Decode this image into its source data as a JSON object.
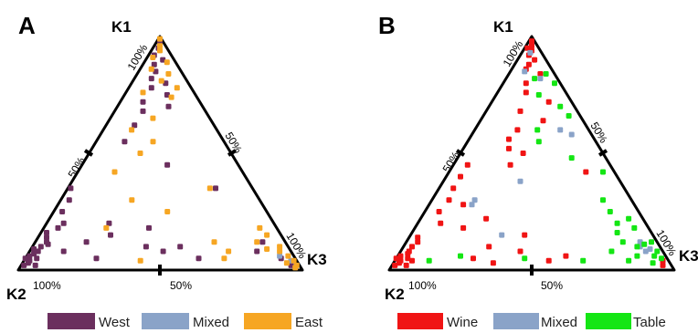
{
  "chart_data": [
    {
      "type": "scatter",
      "panel": "A",
      "vertices": {
        "top": "K1",
        "left": "K2",
        "right": "K3"
      },
      "edge_labels": {
        "k1_100": "100%",
        "k1_50": "50%",
        "k2_100": "100%",
        "bottom_50": "50%",
        "k3_50": "50%",
        "k3_100": "100%"
      },
      "legend": [
        {
          "name": "West",
          "color": "#6b2f5e"
        },
        {
          "name": "Mixed",
          "color": "#8aa3c8"
        },
        {
          "name": "East",
          "color": "#f6a623"
        }
      ],
      "series": [
        {
          "name": "West",
          "color": "#6b2f5e",
          "points": [
            [
              0.02,
              0.97,
              0.01
            ],
            [
              0.03,
              0.95,
              0.02
            ],
            [
              0.04,
              0.94,
              0.02
            ],
            [
              0.02,
              0.93,
              0.05
            ],
            [
              0.05,
              0.91,
              0.04
            ],
            [
              0.06,
              0.93,
              0.01
            ],
            [
              0.08,
              0.89,
              0.03
            ],
            [
              0.1,
              0.87,
              0.03
            ],
            [
              0.11,
              0.84,
              0.05
            ],
            [
              0.14,
              0.83,
              0.03
            ],
            [
              0.16,
              0.82,
              0.02
            ],
            [
              0.09,
              0.9,
              0.01
            ],
            [
              0.07,
              0.91,
              0.02
            ],
            [
              0.05,
              0.96,
              0.0
            ],
            [
              0.35,
              0.64,
              0.01
            ],
            [
              0.3,
              0.67,
              0.03
            ],
            [
              0.25,
              0.72,
              0.03
            ],
            [
              0.2,
              0.74,
              0.06
            ],
            [
              0.18,
              0.77,
              0.05
            ],
            [
              0.12,
              0.84,
              0.04
            ],
            [
              0.2,
              0.58,
              0.22
            ],
            [
              0.12,
              0.7,
              0.18
            ],
            [
              0.08,
              0.8,
              0.12
            ],
            [
              0.15,
              0.6,
              0.25
            ],
            [
              0.05,
              0.7,
              0.25
            ],
            [
              0.1,
              0.5,
              0.4
            ],
            [
              0.18,
              0.45,
              0.37
            ],
            [
              0.08,
              0.45,
              0.47
            ],
            [
              0.1,
              0.38,
              0.52
            ],
            [
              0.05,
              0.34,
              0.61
            ],
            [
              0.98,
              0.01,
              0.01
            ],
            [
              0.95,
              0.03,
              0.02
            ],
            [
              0.92,
              0.06,
              0.02
            ],
            [
              0.9,
              0.04,
              0.06
            ],
            [
              0.88,
              0.08,
              0.04
            ],
            [
              0.85,
              0.09,
              0.06
            ],
            [
              0.82,
              0.12,
              0.06
            ],
            [
              0.8,
              0.08,
              0.12
            ],
            [
              0.78,
              0.14,
              0.08
            ],
            [
              0.75,
              0.1,
              0.15
            ],
            [
              0.72,
              0.2,
              0.08
            ],
            [
              0.68,
              0.22,
              0.1
            ],
            [
              0.7,
              0.12,
              0.18
            ],
            [
              0.62,
              0.28,
              0.1
            ],
            [
              0.55,
              0.35,
              0.1
            ],
            [
              0.45,
              0.25,
              0.3
            ],
            [
              0.35,
              0.13,
              0.52
            ],
            [
              0.12,
              0.08,
              0.8
            ],
            [
              0.08,
              0.12,
              0.8
            ],
            [
              0.05,
              0.05,
              0.9
            ],
            [
              0.02,
              0.03,
              0.95
            ]
          ]
        },
        {
          "name": "Mixed",
          "color": "#8aa3c8",
          "points": [
            [
              0.06,
              0.05,
              0.89
            ],
            [
              0.04,
              0.02,
              0.94
            ]
          ]
        },
        {
          "name": "East",
          "color": "#f6a623",
          "points": [
            [
              0.99,
              0.005,
              0.005
            ],
            [
              0.96,
              0.02,
              0.02
            ],
            [
              0.94,
              0.03,
              0.03
            ],
            [
              0.91,
              0.07,
              0.02
            ],
            [
              0.89,
              0.03,
              0.08
            ],
            [
              0.86,
              0.1,
              0.04
            ],
            [
              0.84,
              0.05,
              0.11
            ],
            [
              0.81,
              0.09,
              0.1
            ],
            [
              0.78,
              0.05,
              0.17
            ],
            [
              0.76,
              0.18,
              0.06
            ],
            [
              0.74,
              0.09,
              0.17
            ],
            [
              0.65,
              0.2,
              0.15
            ],
            [
              0.6,
              0.3,
              0.1
            ],
            [
              0.55,
              0.25,
              0.2
            ],
            [
              0.5,
              0.32,
              0.18
            ],
            [
              0.42,
              0.45,
              0.13
            ],
            [
              0.35,
              0.15,
              0.5
            ],
            [
              0.3,
              0.45,
              0.25
            ],
            [
              0.25,
              0.35,
              0.4
            ],
            [
              0.18,
              0.6,
              0.22
            ],
            [
              0.12,
              0.25,
              0.63
            ],
            [
              0.08,
              0.22,
              0.7
            ],
            [
              0.04,
              0.55,
              0.41
            ],
            [
              0.05,
              0.25,
              0.7
            ],
            [
              0.18,
              0.06,
              0.76
            ],
            [
              0.15,
              0.05,
              0.8
            ],
            [
              0.1,
              0.03,
              0.87
            ],
            [
              0.08,
              0.04,
              0.88
            ],
            [
              0.06,
              0.02,
              0.92
            ],
            [
              0.03,
              0.04,
              0.93
            ],
            [
              0.04,
              0.01,
              0.95
            ],
            [
              0.02,
              0.01,
              0.97
            ],
            [
              0.01,
              0.02,
              0.97
            ],
            [
              0.09,
              0.08,
              0.83
            ],
            [
              0.12,
              0.1,
              0.78
            ]
          ]
        }
      ]
    },
    {
      "type": "scatter",
      "panel": "B",
      "vertices": {
        "top": "K1",
        "left": "K2",
        "right": "K3"
      },
      "edge_labels": {
        "k1_100": "100%",
        "k1_50": "50%",
        "k2_100": "100%",
        "bottom_50": "50%",
        "k3_50": "50%",
        "k3_100": "100%"
      },
      "legend": [
        {
          "name": "Wine",
          "color": "#f01414"
        },
        {
          "name": "Mixed",
          "color": "#8aa3c8"
        },
        {
          "name": "Table",
          "color": "#14e614"
        }
      ],
      "series": [
        {
          "name": "Wine",
          "color": "#f01414",
          "points": [
            [
              0.02,
              0.97,
              0.01
            ],
            [
              0.03,
              0.95,
              0.02
            ],
            [
              0.04,
              0.94,
              0.02
            ],
            [
              0.02,
              0.93,
              0.05
            ],
            [
              0.05,
              0.91,
              0.04
            ],
            [
              0.06,
              0.93,
              0.01
            ],
            [
              0.08,
              0.89,
              0.03
            ],
            [
              0.1,
              0.87,
              0.03
            ],
            [
              0.12,
              0.84,
              0.04
            ],
            [
              0.14,
              0.83,
              0.03
            ],
            [
              0.05,
              0.96,
              0.0
            ],
            [
              0.07,
              0.9,
              0.03
            ],
            [
              0.04,
              0.9,
              0.06
            ],
            [
              0.2,
              0.72,
              0.08
            ],
            [
              0.18,
              0.65,
              0.17
            ],
            [
              0.25,
              0.7,
              0.05
            ],
            [
              0.3,
              0.64,
              0.06
            ],
            [
              0.35,
              0.6,
              0.05
            ],
            [
              0.4,
              0.55,
              0.05
            ],
            [
              0.45,
              0.5,
              0.05
            ],
            [
              0.28,
              0.6,
              0.12
            ],
            [
              0.22,
              0.55,
              0.23
            ],
            [
              0.15,
              0.45,
              0.4
            ],
            [
              0.08,
              0.5,
              0.42
            ],
            [
              0.06,
              0.35,
              0.59
            ],
            [
              0.1,
              0.6,
              0.3
            ],
            [
              0.05,
              0.68,
              0.27
            ],
            [
              0.04,
              0.42,
              0.54
            ],
            [
              0.03,
              0.62,
              0.35
            ],
            [
              0.98,
              0.01,
              0.01
            ],
            [
              0.96,
              0.02,
              0.02
            ],
            [
              0.94,
              0.03,
              0.03
            ],
            [
              0.92,
              0.05,
              0.03
            ],
            [
              0.9,
              0.04,
              0.06
            ],
            [
              0.88,
              0.07,
              0.05
            ],
            [
              0.86,
              0.09,
              0.05
            ],
            [
              0.84,
              0.05,
              0.11
            ],
            [
              0.95,
              0.04,
              0.01
            ],
            [
              0.8,
              0.12,
              0.08
            ],
            [
              0.76,
              0.14,
              0.1
            ],
            [
              0.72,
              0.08,
              0.2
            ],
            [
              0.68,
              0.2,
              0.12
            ],
            [
              0.64,
              0.14,
              0.22
            ],
            [
              0.6,
              0.25,
              0.15
            ],
            [
              0.56,
              0.3,
              0.14
            ],
            [
              0.52,
              0.32,
              0.16
            ],
            [
              0.5,
              0.28,
              0.22
            ],
            [
              0.45,
              0.35,
              0.2
            ],
            [
              0.42,
              0.1,
              0.48
            ],
            [
              0.04,
              0.02,
              0.94
            ],
            [
              0.02,
              0.03,
              0.95
            ]
          ]
        },
        {
          "name": "Mixed",
          "color": "#8aa3c8",
          "points": [
            [
              0.93,
              0.04,
              0.03
            ],
            [
              0.85,
              0.1,
              0.05
            ],
            [
              0.82,
              0.06,
              0.12
            ],
            [
              0.6,
              0.1,
              0.3
            ],
            [
              0.58,
              0.07,
              0.35
            ],
            [
              0.38,
              0.35,
              0.27
            ],
            [
              0.3,
              0.55,
              0.15
            ],
            [
              0.28,
              0.57,
              0.15
            ],
            [
              0.15,
              0.53,
              0.32
            ],
            [
              0.12,
              0.06,
              0.82
            ],
            [
              0.1,
              0.07,
              0.83
            ],
            [
              0.09,
              0.04,
              0.87
            ],
            [
              0.08,
              0.06,
              0.86
            ]
          ]
        },
        {
          "name": "Table",
          "color": "#14e614",
          "points": [
            [
              0.84,
              0.03,
              0.13
            ],
            [
              0.82,
              0.08,
              0.1
            ],
            [
              0.8,
              0.02,
              0.18
            ],
            [
              0.75,
              0.1,
              0.15
            ],
            [
              0.7,
              0.05,
              0.25
            ],
            [
              0.66,
              0.04,
              0.3
            ],
            [
              0.6,
              0.18,
              0.22
            ],
            [
              0.55,
              0.2,
              0.25
            ],
            [
              0.48,
              0.12,
              0.4
            ],
            [
              0.42,
              0.04,
              0.54
            ],
            [
              0.3,
              0.1,
              0.6
            ],
            [
              0.25,
              0.1,
              0.65
            ],
            [
              0.22,
              0.05,
              0.73
            ],
            [
              0.2,
              0.1,
              0.7
            ],
            [
              0.18,
              0.05,
              0.77
            ],
            [
              0.16,
              0.12,
              0.72
            ],
            [
              0.12,
              0.12,
              0.76
            ],
            [
              0.12,
              0.02,
              0.86
            ],
            [
              0.11,
              0.05,
              0.84
            ],
            [
              0.1,
              0.08,
              0.82
            ],
            [
              0.08,
              0.02,
              0.9
            ],
            [
              0.06,
              0.04,
              0.9
            ],
            [
              0.05,
              0.02,
              0.93
            ],
            [
              0.03,
              0.06,
              0.91
            ],
            [
              0.06,
              0.1,
              0.84
            ],
            [
              0.04,
              0.14,
              0.82
            ],
            [
              0.08,
              0.18,
              0.74
            ],
            [
              0.04,
              0.3,
              0.66
            ],
            [
              0.05,
              0.5,
              0.45
            ],
            [
              0.06,
              0.72,
              0.22
            ],
            [
              0.04,
              0.84,
              0.12
            ]
          ]
        }
      ]
    }
  ]
}
